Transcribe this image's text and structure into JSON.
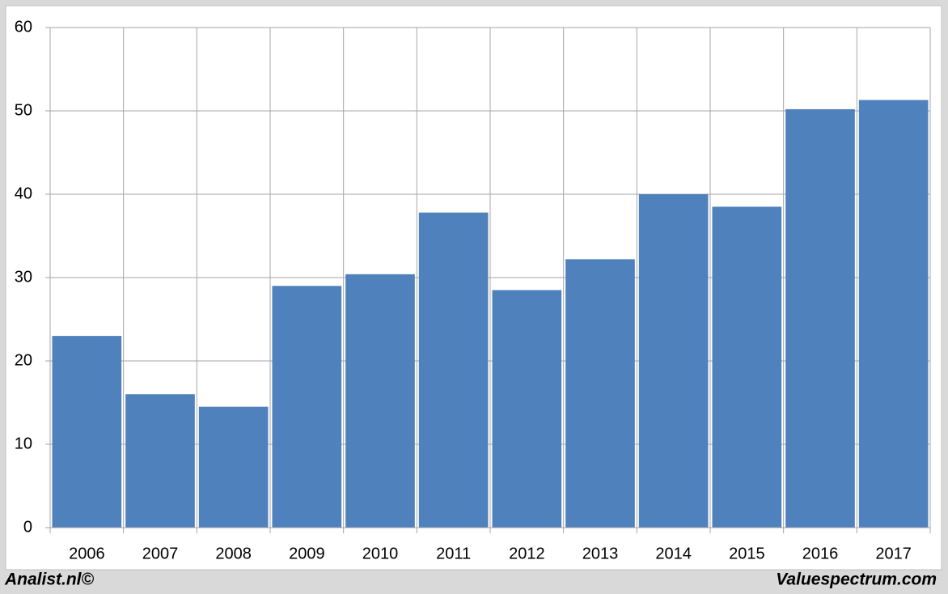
{
  "chart_data": {
    "type": "bar",
    "categories": [
      "2006",
      "2007",
      "2008",
      "2009",
      "2010",
      "2011",
      "2012",
      "2013",
      "2014",
      "2015",
      "2016",
      "2017"
    ],
    "values": [
      23.0,
      16.0,
      14.5,
      29.0,
      30.4,
      37.8,
      28.5,
      32.2,
      40.0,
      38.5,
      50.2,
      51.3
    ],
    "color": "#4f81bd",
    "ylim": [
      0,
      60
    ],
    "yticks": [
      0,
      10,
      20,
      30,
      40,
      50,
      60
    ],
    "grid": true,
    "credit_left": "Analist.nl©",
    "credit_right": "Valuespectrum.com"
  }
}
